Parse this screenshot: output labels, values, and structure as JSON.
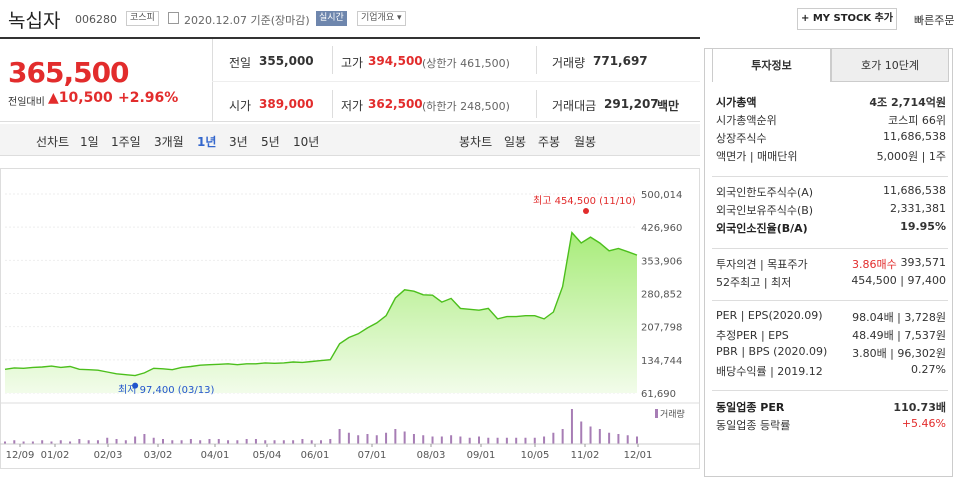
{
  "header": {
    "title": "녹십자",
    "code": "006280",
    "market": "코스피",
    "date": "2020.12.07 기준(장마감)",
    "realtime": "실시간",
    "company_info": "기업개요 ▾",
    "mystock": "+ MY STOCK 추가",
    "quick_order": "빠른주문"
  },
  "price": {
    "current": "365,500",
    "vs_prev_label": "전일대비",
    "change": "▲10,500",
    "change_pct": "+2.96%"
  },
  "summary": {
    "prev_close_label": "전일",
    "prev_close": "355,000",
    "high_label": "고가",
    "high": "394,500",
    "upper_limit": "(상한가 461,500)",
    "volume_label": "거래량",
    "volume": "771,697",
    "open_label": "시가",
    "open": "389,000",
    "low_label": "저가",
    "low": "362,500",
    "lower_limit": "(하한가 248,500)",
    "amount_label": "거래대금",
    "amount": "291,207",
    "amount_unit": "백만"
  },
  "period_tabs": {
    "label": "선차트",
    "items": [
      "1일",
      "1주일",
      "3개월",
      "1년",
      "3년",
      "5년",
      "10년"
    ],
    "active": "1년",
    "candle_label": "봉차트",
    "candle_items": [
      "일봉",
      "주봉",
      "월봉"
    ]
  },
  "chart_data": {
    "type": "area",
    "x_ticks": [
      "12/09",
      "01/02",
      "02/03",
      "03/02",
      "04/01",
      "05/04",
      "06/01",
      "07/01",
      "08/03",
      "09/01",
      "10/05",
      "11/02",
      "12/01"
    ],
    "y_ticks": [
      "500,014",
      "426,960",
      "353,906",
      "280,852",
      "207,798",
      "134,744",
      "61,690"
    ],
    "ylim": [
      61690,
      500014
    ],
    "high_annotation": "최고 454,500 (11/10)",
    "low_annotation": "최저 97,400 (03/13)",
    "volume_label": "거래량",
    "series": [
      {
        "values": [
          114000,
          117000,
          116000,
          118000,
          119000,
          121000,
          118000,
          120000,
          114000,
          113000,
          112000,
          108000,
          104000,
          102000,
          100000,
          106000,
          116000,
          115000,
          113000,
          118000,
          120000,
          123000,
          124000,
          125000,
          126000,
          124000,
          126000,
          126000,
          128000,
          127000,
          128000,
          130000,
          129000,
          131000,
          133000,
          135000,
          170000,
          184000,
          192000,
          205000,
          216000,
          232000,
          271000,
          289000,
          286000,
          278000,
          277000,
          262000,
          270000,
          248000,
          246000,
          244000,
          248000,
          225000,
          230000,
          230000,
          232000,
          232000,
          225000,
          240000,
          296000,
          415000,
          392000,
          405000,
          392000,
          375000,
          380000,
          373000,
          365500
        ]
      }
    ],
    "volume": [
      2,
      3,
      2,
      2,
      3,
      2,
      3,
      2,
      4,
      3,
      3,
      5,
      4,
      3,
      6,
      8,
      5,
      4,
      3,
      3,
      4,
      3,
      4,
      4,
      3,
      3,
      4,
      4,
      3,
      3,
      3,
      3,
      4,
      3,
      3,
      4,
      12,
      9,
      7,
      8,
      7,
      9,
      12,
      10,
      8,
      7,
      6,
      6,
      7,
      6,
      5,
      6,
      5,
      5,
      5,
      5,
      5,
      5,
      6,
      9,
      12,
      28,
      18,
      14,
      12,
      9,
      8,
      7,
      6
    ]
  },
  "right_panel": {
    "tab_invest": "투자정보",
    "tab_hoga": "호가 10단계",
    "rows1": [
      {
        "k": "시가총액",
        "v": "4조 2,714억원"
      },
      {
        "k": "시가총액순위",
        "v": "코스피 66위"
      },
      {
        "k": "상장주식수",
        "v": "11,686,538"
      },
      {
        "k": "액면가 | 매매단위",
        "v": "5,000원 | 1주"
      }
    ],
    "rows2": [
      {
        "k": "외국인한도주식수(A)",
        "v": "11,686,538"
      },
      {
        "k": "외국인보유주식수(B)",
        "v": "2,331,381"
      },
      {
        "k": "외국인소진율(B/A)",
        "v": "19.95%"
      }
    ],
    "rows3": [
      {
        "k": "투자의견 | 목표주가",
        "v1": "3.86매수",
        "v": "393,571"
      },
      {
        "k": "52주최고 | 최저",
        "v": "454,500 | 97,400"
      }
    ],
    "rows4": [
      {
        "k": "PER | EPS(2020.09)",
        "v": "98.04배 | 3,728원"
      },
      {
        "k": "추정PER | EPS",
        "v": "48.49배 | 7,537원"
      },
      {
        "k": "PBR | BPS (2020.09)",
        "v": "3.80배 | 96,302원"
      },
      {
        "k": "배당수익률 | 2019.12",
        "v": "0.27%"
      }
    ],
    "rows5": [
      {
        "k": "동일업종 PER",
        "v": "110.73배"
      },
      {
        "k": "동일업종 등락률",
        "v": "+5.46%"
      }
    ]
  }
}
